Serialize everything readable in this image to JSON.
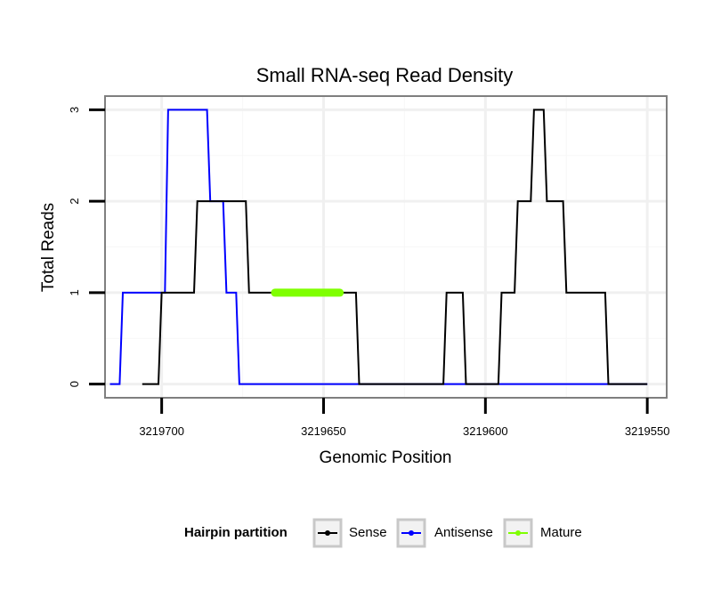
{
  "chart_data": {
    "type": "line",
    "title": "Small RNA-seq Read Density",
    "xlabel": "Genomic Position",
    "ylabel": "Total Reads",
    "xlim": [
      3219717.5,
      3219544
    ],
    "ylim": [
      -0.15,
      3.15
    ],
    "x_reversed": true,
    "grid": true,
    "xticks": [
      3219700,
      3219650,
      3219600,
      3219550
    ],
    "xtick_labels": [
      "3219700",
      "3219650",
      "3219600",
      "3219550"
    ],
    "yticks": [
      0,
      1,
      2,
      3
    ],
    "ytick_labels": [
      "0",
      "1",
      "2",
      "3"
    ],
    "legend": {
      "title": "Hairpin partition",
      "position": "bottom",
      "entries": [
        {
          "name": "Sense",
          "color": "#000000"
        },
        {
          "name": "Antisense",
          "color": "#0000ff"
        },
        {
          "name": "Mature",
          "color": "#7fff00"
        }
      ]
    },
    "series": [
      {
        "name": "Sense",
        "color": "#000000",
        "x": [
          3219706,
          3219705,
          3219701,
          3219700,
          3219696,
          3219695,
          3219690,
          3219689,
          3219681,
          3219680,
          3219674,
          3219673,
          3219660,
          3219659,
          3219640,
          3219639,
          3219624,
          3219623,
          3219613,
          3219612,
          3219607,
          3219606,
          3219596,
          3219595,
          3219591,
          3219590,
          3219586,
          3219585,
          3219582,
          3219581,
          3219576,
          3219575,
          3219563,
          3219562,
          3219550
        ],
        "y": [
          0,
          0,
          0,
          1,
          1,
          1,
          1,
          2,
          2,
          2,
          2,
          1,
          1,
          1,
          1,
          0,
          0,
          0,
          0,
          1,
          1,
          0,
          0,
          1,
          1,
          2,
          2,
          3,
          3,
          2,
          2,
          1,
          1,
          0,
          0
        ]
      },
      {
        "name": "Antisense",
        "color": "#0000ff",
        "x": [
          3219716,
          3219715,
          3219713,
          3219712,
          3219708,
          3219707,
          3219699,
          3219698,
          3219689,
          3219688,
          3219686,
          3219685,
          3219681,
          3219680,
          3219677,
          3219676,
          3219550
        ],
        "y": [
          0,
          0,
          0,
          1,
          1,
          1,
          1,
          3,
          3,
          3,
          3,
          2,
          2,
          1,
          1,
          0,
          0
        ]
      },
      {
        "name": "Mature",
        "color": "#7fff00",
        "x": [
          3219665,
          3219645
        ],
        "y": [
          1,
          1
        ]
      }
    ]
  }
}
